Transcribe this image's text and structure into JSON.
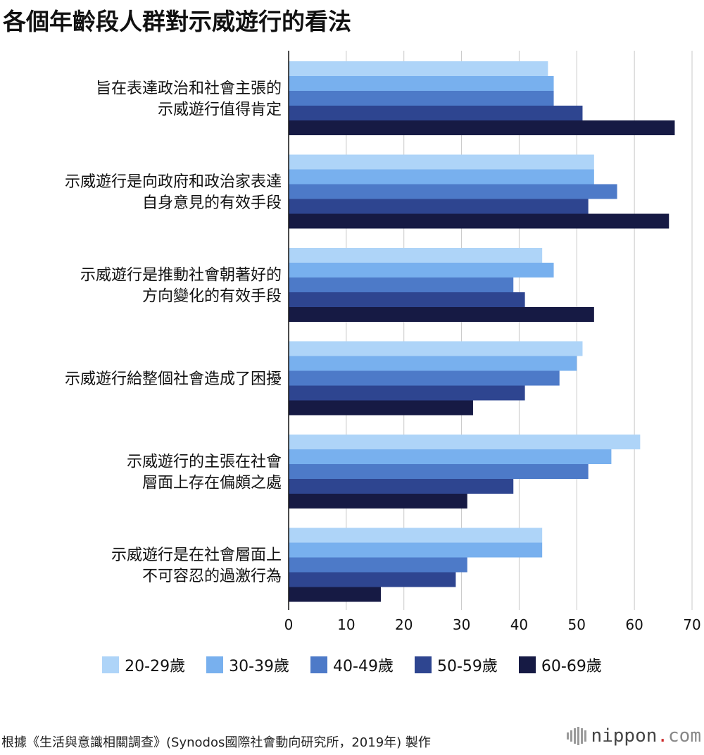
{
  "title": "各個年齡段人群對示威遊行的看法",
  "unit_label": "(%)",
  "source": "根據《生活與意識相關調查》(Synodos國際社會動向研究所，2019年) 製作",
  "brand": {
    "name": "nippon",
    "dot": ".",
    "suffix": "com"
  },
  "colors": [
    "#aed4f8",
    "#78b0ee",
    "#4d7ac8",
    "#2e4590",
    "#161a44"
  ],
  "chart_data": {
    "type": "bar",
    "orientation": "horizontal",
    "title": "各個年齡段人群對示威遊行的看法",
    "xlabel": "(%)",
    "ylabel": "",
    "xlim": [
      0,
      70
    ],
    "xticks": [
      0,
      10,
      20,
      30,
      40,
      50,
      60,
      70
    ],
    "grid": true,
    "legend_position": "bottom",
    "categories": [
      [
        "旨在表達政治和社會主張的",
        "示威遊行值得肯定"
      ],
      [
        "示威遊行是向政府和政治家表達",
        "自身意見的有效手段"
      ],
      [
        "示威遊行是推動社會朝著好的",
        "方向變化的有效手段"
      ],
      [
        "示威遊行給整個社會造成了困擾"
      ],
      [
        "示威遊行的主張在社會",
        "層面上存在偏頗之處"
      ],
      [
        "示威遊行是在社會層面上",
        "不可容忍的過激行為"
      ]
    ],
    "series": [
      {
        "name": "20-29歲",
        "values": [
          45,
          53,
          44,
          51,
          61,
          44
        ]
      },
      {
        "name": "30-39歲",
        "values": [
          46,
          53,
          46,
          50,
          56,
          44
        ]
      },
      {
        "name": "40-49歲",
        "values": [
          46,
          57,
          39,
          47,
          52,
          31
        ]
      },
      {
        "name": "50-59歲",
        "values": [
          51,
          52,
          41,
          41,
          39,
          29
        ]
      },
      {
        "name": "60-69歲",
        "values": [
          67,
          66,
          53,
          32,
          31,
          16
        ]
      }
    ]
  }
}
